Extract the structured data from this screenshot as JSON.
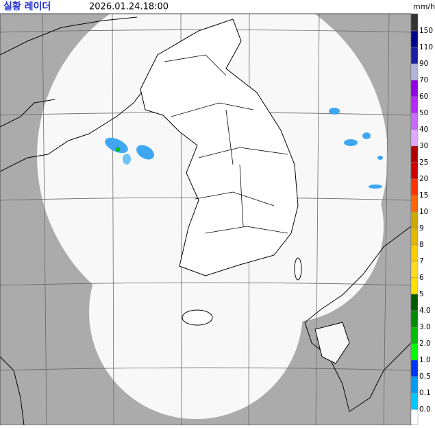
{
  "header": {
    "title": "실황 레이더",
    "timestamp": "2026.01.24.18:00",
    "unit": "mm/h"
  },
  "legend": {
    "top_color": "#333333",
    "items": [
      {
        "label": "150",
        "color": "#000390"
      },
      {
        "label": "110",
        "color": "#1a1fa8"
      },
      {
        "label": "90",
        "color": "#b3b4de"
      },
      {
        "label": "70",
        "color": "#9300e4"
      },
      {
        "label": "60",
        "color": "#b329ff"
      },
      {
        "label": "50",
        "color": "#c969ff"
      },
      {
        "label": "40",
        "color": "#e0a9ff"
      },
      {
        "label": "30",
        "color": "#b40000"
      },
      {
        "label": "25",
        "color": "#d20000"
      },
      {
        "label": "20",
        "color": "#ff3300"
      },
      {
        "label": "15",
        "color": "#ff6600"
      },
      {
        "label": "10",
        "color": "#ccaa00"
      },
      {
        "label": "9",
        "color": "#e0b900"
      },
      {
        "label": "8",
        "color": "#f9cd00"
      },
      {
        "label": "7",
        "color": "#ffdc1f"
      },
      {
        "label": "6",
        "color": "#ffe100"
      },
      {
        "label": "5",
        "color": "#005a00"
      },
      {
        "label": "4.0",
        "color": "#008c00"
      },
      {
        "label": "3.0",
        "color": "#00be00"
      },
      {
        "label": "2.0",
        "color": "#00ff00"
      },
      {
        "label": "1.0",
        "color": "#0033f5"
      },
      {
        "label": "0.5",
        "color": "#009bf5"
      },
      {
        "label": "0.1",
        "color": "#00c8ff"
      },
      {
        "label": "0.0",
        "color": "#ffffff"
      }
    ]
  }
}
